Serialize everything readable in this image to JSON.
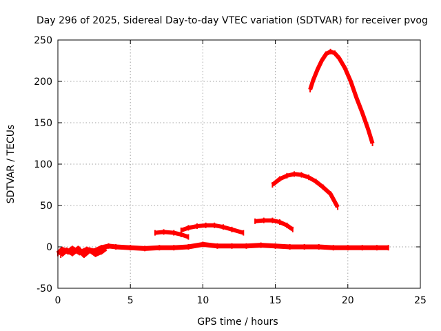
{
  "chart_data": {
    "type": "line",
    "title": "Day 296 of 2025, Sidereal Day-to-day VTEC variation (SDTVAR) for receiver pvog",
    "xlabel": "GPS time / hours",
    "ylabel": "SDTVAR / TECUs",
    "xlim": [
      0,
      25
    ],
    "ylim": [
      -50,
      250
    ],
    "xticks": [
      0,
      5,
      10,
      15,
      20,
      25
    ],
    "yticks": [
      -50,
      0,
      50,
      100,
      150,
      200,
      250
    ],
    "grid": true,
    "color": "#ff0000",
    "series": [
      {
        "name": "baseline",
        "points": [
          [
            0.0,
            -8
          ],
          [
            0.3,
            -3
          ],
          [
            0.7,
            -6
          ],
          [
            1.0,
            -2
          ],
          [
            1.5,
            -7
          ],
          [
            2.0,
            -3
          ],
          [
            2.5,
            -5
          ],
          [
            3.0,
            -1
          ],
          [
            3.5,
            1
          ],
          [
            4.0,
            0
          ],
          [
            5.0,
            -1
          ],
          [
            6.0,
            -2
          ],
          [
            7.0,
            -1
          ],
          [
            8.0,
            -1
          ],
          [
            9.0,
            0
          ],
          [
            10.0,
            3
          ],
          [
            11.0,
            1
          ],
          [
            12.0,
            1
          ],
          [
            13.0,
            1
          ],
          [
            14.0,
            2
          ],
          [
            15.0,
            1
          ],
          [
            16.0,
            0
          ],
          [
            17.0,
            0
          ],
          [
            18.0,
            0
          ],
          [
            19.0,
            -1
          ],
          [
            20.0,
            -1
          ],
          [
            21.0,
            -1
          ],
          [
            22.0,
            -1
          ],
          [
            22.8,
            -1
          ]
        ]
      },
      {
        "name": "baseline-scatter",
        "points": [
          [
            0.2,
            -10
          ],
          [
            0.6,
            -4
          ],
          [
            1.0,
            -8
          ],
          [
            1.4,
            -2
          ],
          [
            1.8,
            -10
          ],
          [
            2.2,
            -4
          ],
          [
            2.6,
            -9
          ],
          [
            3.0,
            -6
          ],
          [
            3.3,
            -2
          ]
        ]
      },
      {
        "name": "arc-1",
        "points": [
          [
            6.7,
            17
          ],
          [
            7.3,
            18
          ],
          [
            8.0,
            17
          ],
          [
            8.5,
            15
          ],
          [
            9.0,
            12
          ]
        ]
      },
      {
        "name": "arc-2",
        "points": [
          [
            8.5,
            20
          ],
          [
            9.0,
            23
          ],
          [
            9.6,
            25
          ],
          [
            10.2,
            26
          ],
          [
            10.8,
            26
          ],
          [
            11.4,
            24
          ],
          [
            12.0,
            21
          ],
          [
            12.8,
            17
          ]
        ]
      },
      {
        "name": "arc-3",
        "points": [
          [
            13.6,
            31
          ],
          [
            14.2,
            32
          ],
          [
            14.8,
            32
          ],
          [
            15.3,
            30
          ],
          [
            15.8,
            26
          ],
          [
            16.2,
            21
          ]
        ]
      },
      {
        "name": "arc-4",
        "points": [
          [
            14.8,
            75
          ],
          [
            15.3,
            82
          ],
          [
            15.8,
            86
          ],
          [
            16.3,
            88
          ],
          [
            16.8,
            87
          ],
          [
            17.3,
            84
          ],
          [
            17.8,
            79
          ],
          [
            18.3,
            72
          ],
          [
            18.8,
            64
          ],
          [
            19.3,
            48
          ]
        ]
      },
      {
        "name": "arc-5",
        "points": [
          [
            17.4,
            190
          ],
          [
            17.6,
            201
          ],
          [
            17.9,
            214
          ],
          [
            18.2,
            225
          ],
          [
            18.5,
            233
          ],
          [
            18.8,
            236
          ],
          [
            19.1,
            234
          ],
          [
            19.4,
            228
          ],
          [
            19.8,
            216
          ],
          [
            20.2,
            200
          ],
          [
            20.6,
            180
          ],
          [
            21.0,
            162
          ],
          [
            21.4,
            142
          ],
          [
            21.7,
            125
          ]
        ]
      }
    ]
  }
}
